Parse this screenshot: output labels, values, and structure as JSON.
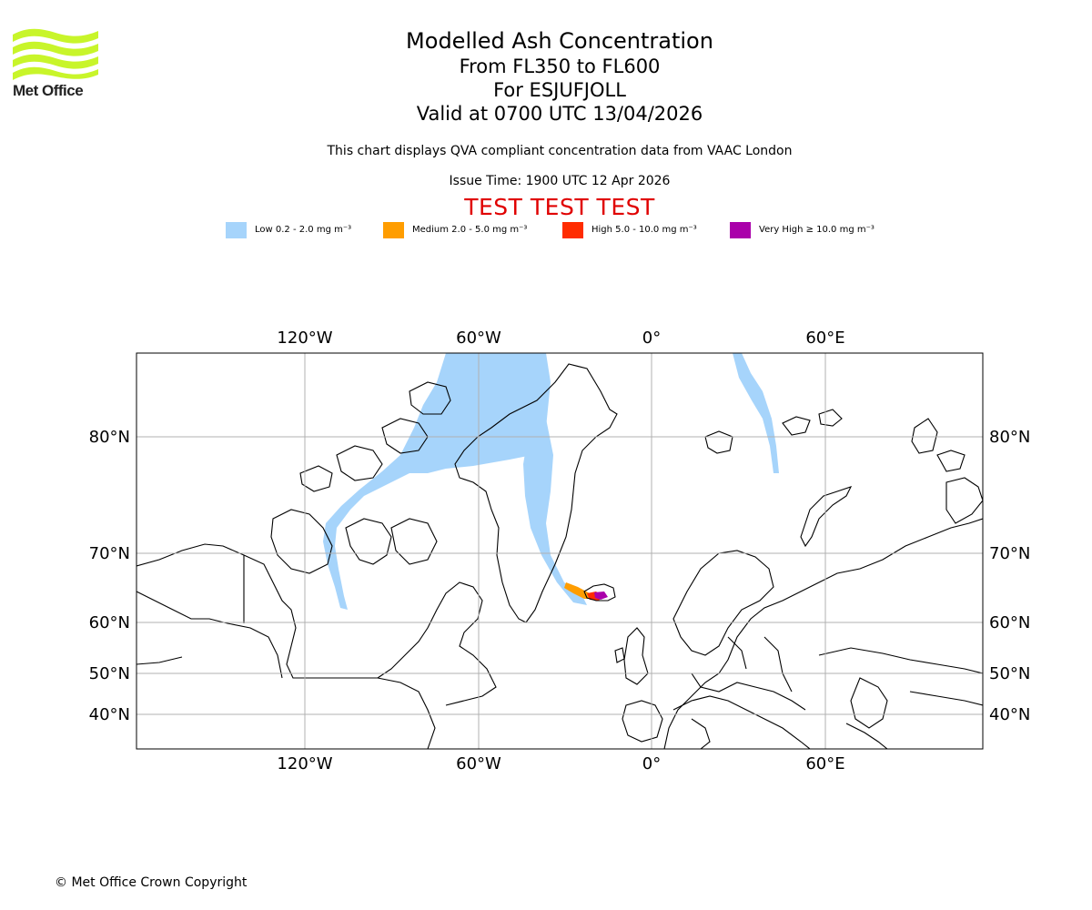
{
  "logo": {
    "text": "Met Office",
    "icon": "met-office-waves-logo",
    "color": "#c8f52a"
  },
  "titles": {
    "main": "Modelled Ash Concentration",
    "levels": "From FL350 to FL600",
    "volcano": "For ESJUFJOLL",
    "valid": "Valid at 0700 UTC 13/04/2026"
  },
  "notes": {
    "qva": "This chart displays QVA compliant concentration data from VAAC London",
    "issue": "Issue Time: 1900 UTC 12 Apr 2026"
  },
  "test_banner": "TEST TEST TEST",
  "legend": [
    {
      "label": "Low 0.2 - 2.0 mg m⁻³",
      "color": "#a6d4fb"
    },
    {
      "label": "Medium 2.0 - 5.0 mg m⁻³",
      "color": "#ff9d00"
    },
    {
      "label": "High 5.0 - 10.0 mg m⁻³",
      "color": "#ff2c00"
    },
    {
      "label": "Very High ≥ 10.0 mg m⁻³",
      "color": "#aa00aa"
    }
  ],
  "map": {
    "lon_ticks": [
      "120°W",
      "60°W",
      "0°",
      "60°E"
    ],
    "lat_ticks": [
      "80°N",
      "70°N",
      "60°N",
      "50°N",
      "40°N"
    ],
    "gridlines": true,
    "land_outline_color": "#000000",
    "grid_color": "#b0b0b0"
  },
  "copyright": "© Met Office Crown Copyright"
}
